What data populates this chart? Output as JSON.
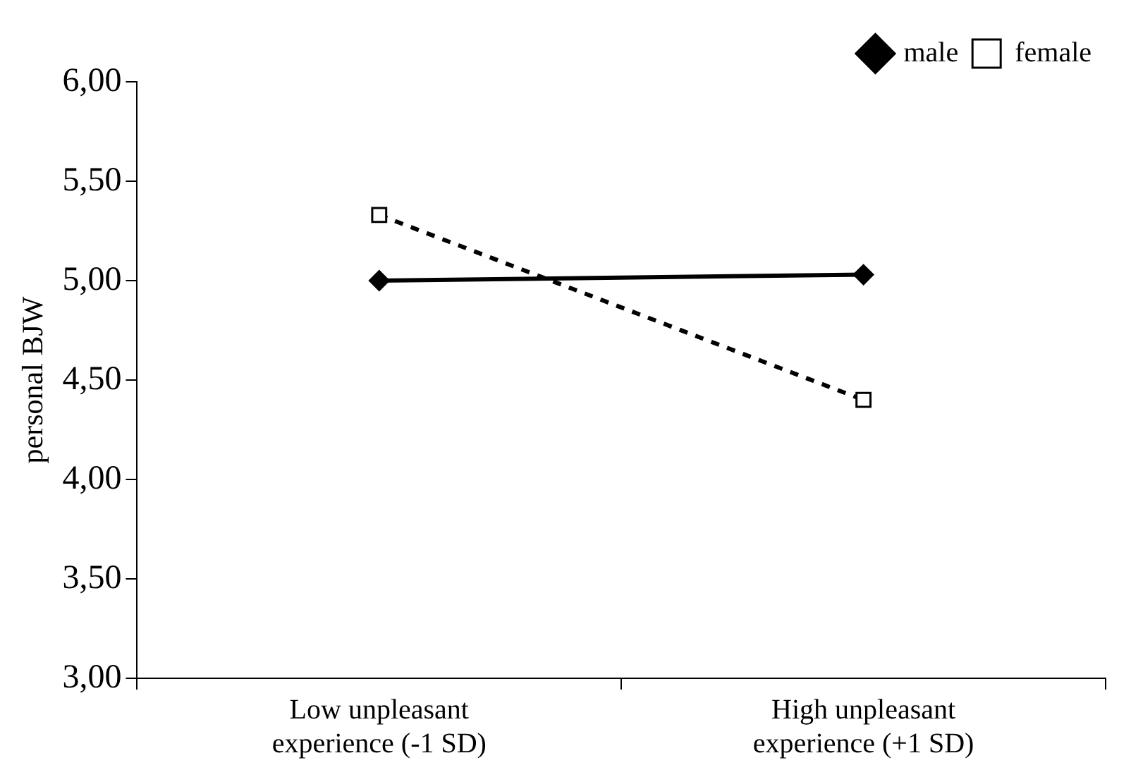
{
  "chart_data": {
    "type": "line",
    "ylabel": "personal BJW",
    "categories": [
      "Low unpleasant experience (-1 SD)",
      "High unpleasant experience (+1 SD)"
    ],
    "series": [
      {
        "name": "male",
        "color": "#000000",
        "values": [
          5.0,
          5.03
        ],
        "marker": "diamond",
        "line_style": "solid"
      },
      {
        "name": "female",
        "color": "#000000",
        "values": [
          5.33,
          4.4
        ],
        "marker": "square",
        "line_style": "dashed"
      }
    ],
    "ylim": [
      3,
      6
    ],
    "yticks": [
      {
        "value": 3,
        "label": "3,00"
      },
      {
        "value": 3.5,
        "label": "3,50"
      },
      {
        "value": 4,
        "label": "4,00"
      },
      {
        "value": 4.5,
        "label": "4,50"
      },
      {
        "value": 5,
        "label": "5,00"
      },
      {
        "value": 5.5,
        "label": "5,50"
      },
      {
        "value": 6,
        "label": "6,00"
      }
    ],
    "grid": false,
    "legend": "top right"
  }
}
